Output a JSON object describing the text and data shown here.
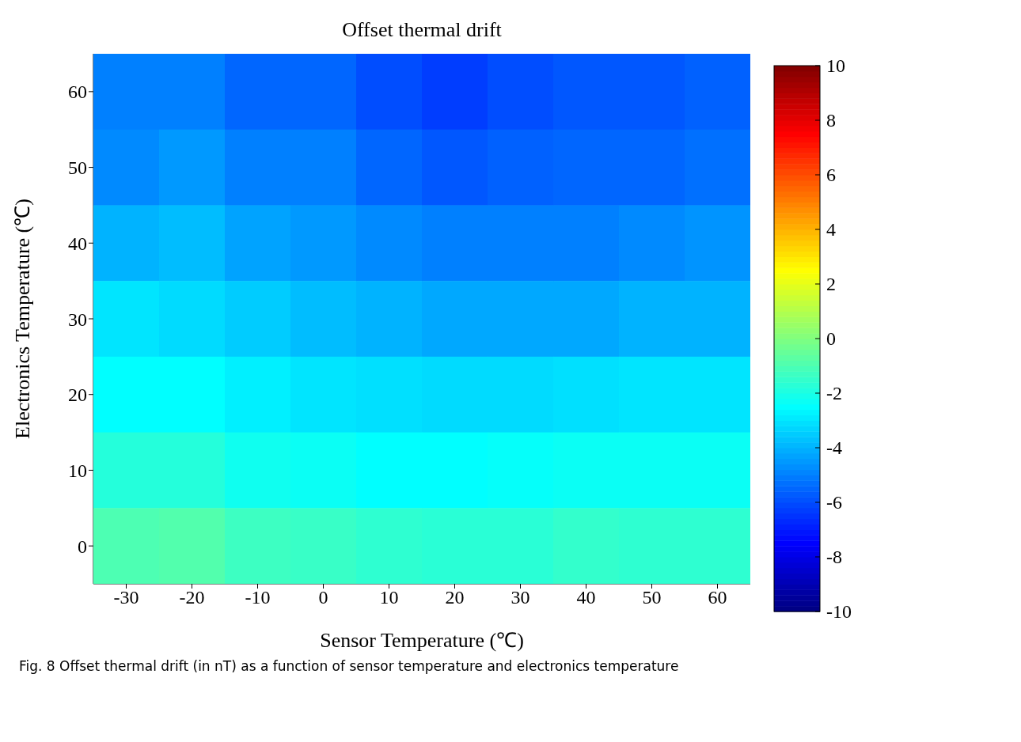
{
  "chart_data": {
    "type": "heatmap",
    "title": "Offset thermal drift",
    "xlabel": "Sensor Temperature (℃)",
    "ylabel": "Electronics Temperature (℃)",
    "categories": [
      "-30",
      "-20",
      "-10",
      "0",
      "10",
      "20",
      "30",
      "40",
      "50",
      "60"
    ],
    "y_categories": [
      "60",
      "50",
      "40",
      "30",
      "20",
      "10",
      "0"
    ],
    "cells": [
      [
        -5,
        -5,
        -5.5,
        -5.5,
        -6,
        -6.3,
        -6,
        -5.8,
        -5.8,
        -5.6
      ],
      [
        -4.8,
        -4.5,
        -5,
        -5,
        -5.5,
        -5.8,
        -5.6,
        -5.5,
        -5.5,
        -5.3
      ],
      [
        -4,
        -3.8,
        -4.3,
        -4.5,
        -4.8,
        -5,
        -5,
        -5,
        -4.8,
        -4.6
      ],
      [
        -3,
        -3.2,
        -3.5,
        -3.8,
        -4,
        -4.2,
        -4.2,
        -4.2,
        -4,
        -4
      ],
      [
        -2.5,
        -2.5,
        -2.8,
        -3,
        -3.1,
        -3.2,
        -3.2,
        -3.1,
        -3,
        -3
      ],
      [
        -1.8,
        -1.8,
        -2.2,
        -2.3,
        -2.5,
        -2.5,
        -2.4,
        -2.3,
        -2.3,
        -2.3
      ],
      [
        -1,
        -0.9,
        -1.3,
        -1.4,
        -1.6,
        -1.7,
        -1.7,
        -1.5,
        -1.6,
        -1.6
      ]
    ],
    "clim": [
      -10,
      10
    ],
    "cticks": [
      -10,
      -8,
      -6,
      -4,
      -2,
      0,
      2,
      4,
      6,
      8,
      10
    ],
    "annotations": [
      "Fig. 8 Offset thermal drift (in nT) as a function of sensor temperature and electronics temperature"
    ]
  }
}
